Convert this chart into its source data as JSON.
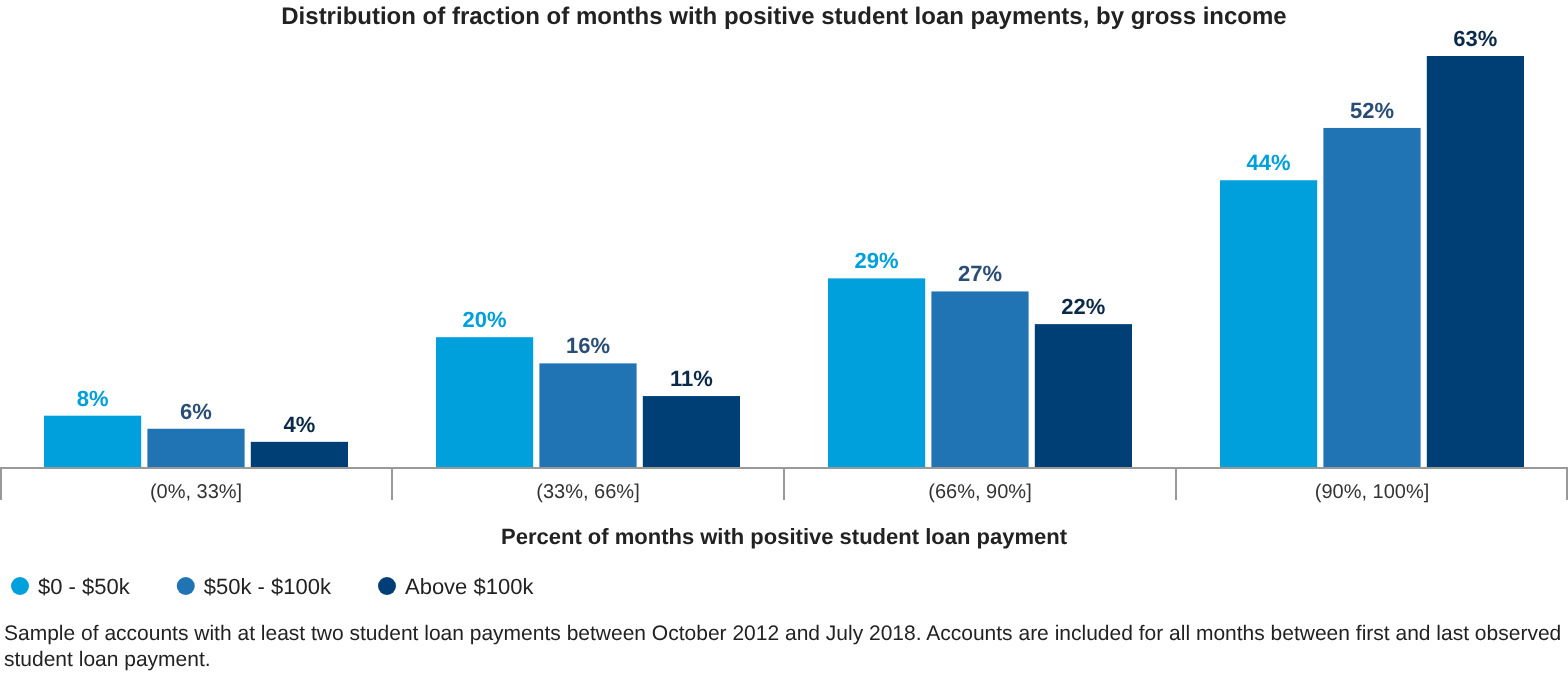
{
  "chart_data": {
    "type": "bar",
    "title": "Distribution of fraction of months with positive student loan payments, by gross income",
    "xlabel": "Percent of months with positive student loan payment",
    "categories": [
      "(0%, 33%]",
      "(33%, 66%]",
      "(66%, 90%]",
      "(90%, 100%]"
    ],
    "series": [
      {
        "name": "$0 - $50k",
        "color": "#00a0dc",
        "values": [
          8,
          20,
          29,
          44
        ],
        "value_labels": [
          "8%",
          "20%",
          "29%",
          "44%"
        ]
      },
      {
        "name": "$50k - $100k",
        "color": "#2174b4",
        "values": [
          6,
          16,
          27,
          52
        ],
        "value_labels": [
          "6%",
          "16%",
          "27%",
          "52%"
        ]
      },
      {
        "name": "Above $100k",
        "color": "#003e76",
        "values": [
          4,
          11,
          22,
          63
        ],
        "value_labels": [
          "4%",
          "11%",
          "22%",
          "63%"
        ]
      }
    ],
    "legend": "bottom left",
    "annotations": [
      "Sample of accounts with at least two student loan payments between October 2012 and July 2018. Accounts are included for all months between first and last observed",
      "student loan payment."
    ]
  }
}
